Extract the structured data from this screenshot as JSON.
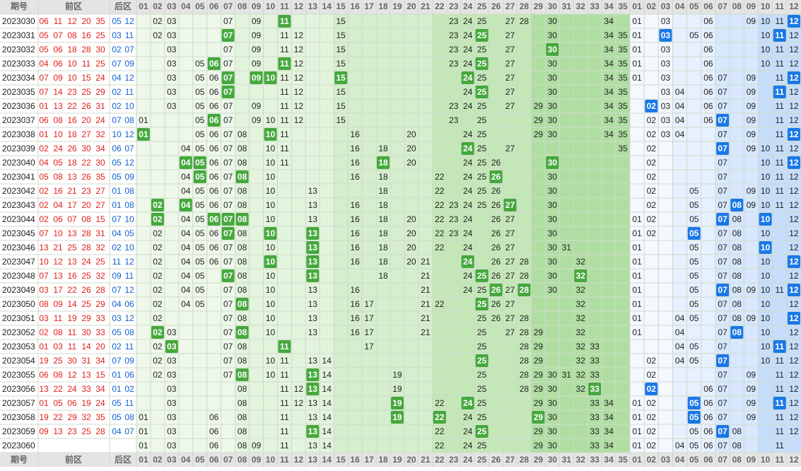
{
  "header": {
    "issue": "期号",
    "front": "前区",
    "back": "后区",
    "front_cols": [
      "01",
      "02",
      "03",
      "04",
      "05",
      "06",
      "07",
      "08",
      "09",
      "10",
      "11",
      "12",
      "13",
      "14",
      "15",
      "16",
      "17",
      "18",
      "19",
      "20",
      "21",
      "22",
      "23",
      "24",
      "25",
      "26",
      "27",
      "28",
      "29",
      "30",
      "31",
      "32",
      "33",
      "34",
      "35"
    ],
    "back_cols": [
      "01",
      "02",
      "03",
      "04",
      "05",
      "06",
      "07",
      "08",
      "09",
      "10",
      "11",
      "12"
    ]
  },
  "rows": [
    {
      "issue": "2023030",
      "front": [
        "06",
        "11",
        "12",
        "20",
        "35"
      ],
      "back": [
        "05",
        "12"
      ],
      "front_zone": [
        "02",
        "03",
        "07",
        "09",
        "11",
        "15",
        "23",
        "24",
        "25",
        "27",
        "28",
        "30",
        "34"
      ],
      "back_zone": [
        "01",
        "03",
        "06",
        "09",
        "10",
        "11",
        "12"
      ]
    },
    {
      "issue": "2023031",
      "front": [
        "05",
        "07",
        "08",
        "16",
        "25"
      ],
      "back": [
        "03",
        "11"
      ],
      "front_zone": [
        "02",
        "03",
        "07",
        "09",
        "11",
        "12",
        "15",
        "23",
        "24",
        "25",
        "27",
        "30",
        "34",
        "35"
      ],
      "back_zone": [
        "01",
        "03",
        "05",
        "06",
        "10",
        "11",
        "12"
      ]
    },
    {
      "issue": "2023032",
      "front": [
        "05",
        "06",
        "18",
        "28",
        "30"
      ],
      "back": [
        "02",
        "07"
      ],
      "front_zone": [
        "03",
        "07",
        "09",
        "11",
        "12",
        "15",
        "23",
        "24",
        "25",
        "27",
        "30",
        "34",
        "35"
      ],
      "back_zone": [
        "01",
        "03",
        "06",
        "10",
        "11",
        "12"
      ]
    },
    {
      "issue": "2023033",
      "front": [
        "04",
        "06",
        "10",
        "11",
        "25"
      ],
      "back": [
        "07",
        "09"
      ],
      "front_zone": [
        "03",
        "05",
        "06",
        "07",
        "09",
        "11",
        "12",
        "15",
        "23",
        "24",
        "25",
        "27",
        "30",
        "34",
        "35"
      ],
      "back_zone": [
        "01",
        "03",
        "06",
        "10",
        "11",
        "12"
      ]
    },
    {
      "issue": "2023034",
      "front": [
        "07",
        "09",
        "10",
        "15",
        "24"
      ],
      "back": [
        "04",
        "12"
      ],
      "front_zone": [
        "03",
        "05",
        "06",
        "07",
        "09",
        "10",
        "11",
        "12",
        "15",
        "24",
        "25",
        "27",
        "30",
        "34",
        "35"
      ],
      "back_zone": [
        "01",
        "03",
        "06",
        "07",
        "09",
        "11",
        "12"
      ]
    },
    {
      "issue": "2023035",
      "front": [
        "07",
        "14",
        "23",
        "25",
        "29"
      ],
      "back": [
        "02",
        "11"
      ],
      "front_zone": [
        "03",
        "05",
        "06",
        "07",
        "11",
        "12",
        "15",
        "24",
        "25",
        "27",
        "30",
        "34",
        "35"
      ],
      "back_zone": [
        "03",
        "04",
        "06",
        "07",
        "09",
        "11",
        "12"
      ]
    },
    {
      "issue": "2023036",
      "front": [
        "01",
        "13",
        "22",
        "26",
        "31"
      ],
      "back": [
        "02",
        "10"
      ],
      "front_zone": [
        "03",
        "05",
        "06",
        "07",
        "09",
        "11",
        "12",
        "15",
        "23",
        "24",
        "25",
        "27",
        "29",
        "30",
        "34",
        "35"
      ],
      "back_zone": [
        "02",
        "03",
        "04",
        "06",
        "07",
        "09",
        "11",
        "12"
      ]
    },
    {
      "issue": "2023037",
      "front": [
        "06",
        "08",
        "16",
        "20",
        "24"
      ],
      "back": [
        "07",
        "08"
      ],
      "front_zone": [
        "01",
        "05",
        "06",
        "07",
        "09",
        "10",
        "11",
        "12",
        "15",
        "23",
        "25",
        "29",
        "30",
        "34",
        "35"
      ],
      "back_zone": [
        "02",
        "03",
        "04",
        "06",
        "07",
        "09",
        "11",
        "12"
      ]
    },
    {
      "issue": "2023038",
      "front": [
        "01",
        "10",
        "18",
        "27",
        "32"
      ],
      "back": [
        "10",
        "12"
      ],
      "front_zone": [
        "01",
        "05",
        "06",
        "07",
        "08",
        "10",
        "11",
        "16",
        "20",
        "24",
        "25",
        "29",
        "30",
        "34",
        "35"
      ],
      "back_zone": [
        "02",
        "03",
        "04",
        "07",
        "09",
        "11",
        "12"
      ]
    },
    {
      "issue": "2023039",
      "front": [
        "02",
        "24",
        "26",
        "30",
        "34"
      ],
      "back": [
        "06",
        "07"
      ],
      "front_zone": [
        "04",
        "05",
        "06",
        "07",
        "08",
        "10",
        "11",
        "16",
        "18",
        "20",
        "24",
        "25",
        "27",
        "35"
      ],
      "back_zone": [
        "02",
        "07",
        "09",
        "10",
        "11",
        "12"
      ]
    },
    {
      "issue": "2023040",
      "front": [
        "04",
        "05",
        "18",
        "22",
        "30"
      ],
      "back": [
        "05",
        "12"
      ],
      "front_zone": [
        "04",
        "05",
        "06",
        "07",
        "08",
        "10",
        "11",
        "16",
        "18",
        "20",
        "24",
        "25",
        "26",
        "30"
      ],
      "back_zone": [
        "02",
        "07",
        "10",
        "11",
        "12"
      ]
    },
    {
      "issue": "2023041",
      "front": [
        "05",
        "08",
        "13",
        "26",
        "35"
      ],
      "back": [
        "05",
        "09"
      ],
      "front_zone": [
        "04",
        "05",
        "06",
        "07",
        "08",
        "10",
        "16",
        "18",
        "22",
        "24",
        "25",
        "26",
        "30"
      ],
      "back_zone": [
        "02",
        "07",
        "10",
        "11",
        "12"
      ]
    },
    {
      "issue": "2023042",
      "front": [
        "02",
        "16",
        "21",
        "23",
        "27"
      ],
      "back": [
        "01",
        "08"
      ],
      "front_zone": [
        "04",
        "05",
        "06",
        "07",
        "08",
        "10",
        "13",
        "18",
        "22",
        "24",
        "25",
        "26",
        "30"
      ],
      "back_zone": [
        "02",
        "05",
        "07",
        "09",
        "10",
        "11",
        "12"
      ]
    },
    {
      "issue": "2023043",
      "front": [
        "02",
        "04",
        "17",
        "20",
        "27"
      ],
      "back": [
        "01",
        "08"
      ],
      "front_zone": [
        "02",
        "04",
        "05",
        "06",
        "07",
        "08",
        "10",
        "13",
        "16",
        "18",
        "22",
        "23",
        "24",
        "25",
        "26",
        "27",
        "30"
      ],
      "back_zone": [
        "02",
        "05",
        "07",
        "08",
        "09",
        "10",
        "11",
        "12"
      ]
    },
    {
      "issue": "2023044",
      "front": [
        "02",
        "06",
        "07",
        "08",
        "15"
      ],
      "back": [
        "07",
        "10"
      ],
      "front_zone": [
        "02",
        "04",
        "05",
        "06",
        "07",
        "08",
        "10",
        "13",
        "16",
        "18",
        "20",
        "22",
        "23",
        "24",
        "26",
        "27",
        "30"
      ],
      "back_zone": [
        "01",
        "02",
        "05",
        "07",
        "08",
        "10",
        "12"
      ]
    },
    {
      "issue": "2023045",
      "front": [
        "07",
        "10",
        "13",
        "28",
        "31"
      ],
      "back": [
        "04",
        "05"
      ],
      "front_zone": [
        "02",
        "04",
        "05",
        "06",
        "07",
        "08",
        "10",
        "13",
        "16",
        "18",
        "20",
        "22",
        "23",
        "24",
        "26",
        "27",
        "30"
      ],
      "back_zone": [
        "01",
        "02",
        "05",
        "07",
        "08",
        "10",
        "12"
      ]
    },
    {
      "issue": "2023046",
      "front": [
        "13",
        "21",
        "25",
        "28",
        "32"
      ],
      "back": [
        "02",
        "10"
      ],
      "front_zone": [
        "02",
        "04",
        "05",
        "06",
        "07",
        "08",
        "10",
        "13",
        "16",
        "18",
        "20",
        "22",
        "24",
        "26",
        "27",
        "30",
        "31"
      ],
      "back_zone": [
        "01",
        "05",
        "07",
        "08",
        "10",
        "12"
      ]
    },
    {
      "issue": "2023047",
      "front": [
        "10",
        "12",
        "13",
        "24",
        "25"
      ],
      "back": [
        "11",
        "12"
      ],
      "front_zone": [
        "02",
        "04",
        "05",
        "06",
        "07",
        "08",
        "10",
        "13",
        "16",
        "18",
        "20",
        "21",
        "24",
        "26",
        "27",
        "28",
        "30",
        "32"
      ],
      "back_zone": [
        "01",
        "05",
        "07",
        "08",
        "10",
        "12"
      ]
    },
    {
      "issue": "2023048",
      "front": [
        "07",
        "13",
        "16",
        "25",
        "32"
      ],
      "back": [
        "09",
        "11"
      ],
      "front_zone": [
        "02",
        "04",
        "05",
        "07",
        "08",
        "10",
        "13",
        "18",
        "21",
        "24",
        "25",
        "26",
        "27",
        "28",
        "30",
        "32"
      ],
      "back_zone": [
        "01",
        "05",
        "07",
        "08",
        "10",
        "12"
      ]
    },
    {
      "issue": "2023049",
      "front": [
        "03",
        "17",
        "22",
        "26",
        "28"
      ],
      "back": [
        "07",
        "12"
      ],
      "front_zone": [
        "02",
        "04",
        "05",
        "07",
        "08",
        "10",
        "13",
        "16",
        "21",
        "24",
        "25",
        "26",
        "27",
        "28",
        "30",
        "32"
      ],
      "back_zone": [
        "01",
        "05",
        "07",
        "08",
        "09",
        "10",
        "11",
        "12"
      ]
    },
    {
      "issue": "2023050",
      "front": [
        "08",
        "09",
        "14",
        "25",
        "29"
      ],
      "back": [
        "04",
        "06"
      ],
      "front_zone": [
        "02",
        "04",
        "05",
        "07",
        "08",
        "10",
        "13",
        "16",
        "17",
        "21",
        "22",
        "25",
        "26",
        "27",
        "32"
      ],
      "back_zone": [
        "01",
        "05",
        "07",
        "08",
        "10",
        "12"
      ]
    },
    {
      "issue": "2023051",
      "front": [
        "03",
        "11",
        "19",
        "29",
        "33"
      ],
      "back": [
        "03",
        "12"
      ],
      "front_zone": [
        "02",
        "07",
        "08",
        "10",
        "13",
        "16",
        "17",
        "21",
        "25",
        "26",
        "27",
        "28",
        "32"
      ],
      "back_zone": [
        "01",
        "04",
        "05",
        "07",
        "08",
        "09",
        "10",
        "12"
      ]
    },
    {
      "issue": "2023052",
      "front": [
        "02",
        "08",
        "11",
        "30",
        "33"
      ],
      "back": [
        "05",
        "08"
      ],
      "front_zone": [
        "02",
        "03",
        "07",
        "08",
        "10",
        "13",
        "16",
        "17",
        "21",
        "25",
        "27",
        "28",
        "29",
        "32"
      ],
      "back_zone": [
        "01",
        "04",
        "07",
        "08",
        "10",
        "12"
      ]
    },
    {
      "issue": "2023053",
      "front": [
        "01",
        "03",
        "11",
        "14",
        "20"
      ],
      "back": [
        "02",
        "11"
      ],
      "front_zone": [
        "02",
        "03",
        "07",
        "08",
        "11",
        "17",
        "25",
        "28",
        "29",
        "32",
        "33"
      ],
      "back_zone": [
        "04",
        "05",
        "07",
        "10",
        "11",
        "12"
      ]
    },
    {
      "issue": "2023054",
      "front": [
        "19",
        "25",
        "30",
        "31",
        "34"
      ],
      "back": [
        "07",
        "09"
      ],
      "front_zone": [
        "02",
        "03",
        "07",
        "08",
        "10",
        "11",
        "13",
        "14",
        "25",
        "28",
        "29",
        "32",
        "33"
      ],
      "back_zone": [
        "02",
        "04",
        "05",
        "07",
        "10",
        "11",
        "12"
      ]
    },
    {
      "issue": "2023055",
      "front": [
        "06",
        "08",
        "12",
        "13",
        "15"
      ],
      "back": [
        "01",
        "06"
      ],
      "front_zone": [
        "02",
        "03",
        "07",
        "08",
        "10",
        "11",
        "13",
        "14",
        "19",
        "25",
        "28",
        "29",
        "30",
        "31",
        "32",
        "33"
      ],
      "back_zone": [
        "02",
        "07",
        "09",
        "11",
        "12"
      ]
    },
    {
      "issue": "2023056",
      "front": [
        "13",
        "22",
        "24",
        "33",
        "34"
      ],
      "back": [
        "01",
        "02"
      ],
      "front_zone": [
        "03",
        "08",
        "11",
        "12",
        "13",
        "14",
        "19",
        "25",
        "28",
        "29",
        "30",
        "32",
        "33"
      ],
      "back_zone": [
        "02",
        "06",
        "07",
        "09",
        "11",
        "12"
      ]
    },
    {
      "issue": "2023057",
      "front": [
        "01",
        "05",
        "06",
        "19",
        "24"
      ],
      "back": [
        "05",
        "11"
      ],
      "front_zone": [
        "03",
        "08",
        "11",
        "12",
        "13",
        "14",
        "19",
        "22",
        "24",
        "25",
        "29",
        "30",
        "33",
        "34"
      ],
      "back_zone": [
        "01",
        "02",
        "05",
        "06",
        "07",
        "09",
        "11",
        "12"
      ]
    },
    {
      "issue": "2023058",
      "front": [
        "19",
        "22",
        "29",
        "32",
        "35"
      ],
      "back": [
        "05",
        "08"
      ],
      "front_zone": [
        "01",
        "03",
        "06",
        "08",
        "11",
        "13",
        "14",
        "19",
        "22",
        "24",
        "25",
        "29",
        "30",
        "33",
        "34"
      ],
      "back_zone": [
        "01",
        "02",
        "05",
        "06",
        "07",
        "09",
        "11",
        "12"
      ]
    },
    {
      "issue": "2023059",
      "front": [
        "09",
        "13",
        "23",
        "25",
        "28"
      ],
      "back": [
        "04",
        "07"
      ],
      "front_zone": [
        "01",
        "03",
        "06",
        "08",
        "11",
        "13",
        "14",
        "22",
        "24",
        "25",
        "29",
        "30",
        "33",
        "34"
      ],
      "back_zone": [
        "01",
        "02",
        "05",
        "06",
        "07",
        "08",
        "11",
        "12"
      ]
    },
    {
      "issue": "2023060",
      "front": [],
      "back": [],
      "front_zone": [
        "01",
        "03",
        "06",
        "08",
        "09",
        "11",
        "13",
        "14",
        "22",
        "24",
        "25",
        "29",
        "30",
        "33",
        "34"
      ],
      "back_zone": [
        "01",
        "02",
        "04",
        "05",
        "06",
        "07",
        "08",
        "11"
      ]
    }
  ]
}
